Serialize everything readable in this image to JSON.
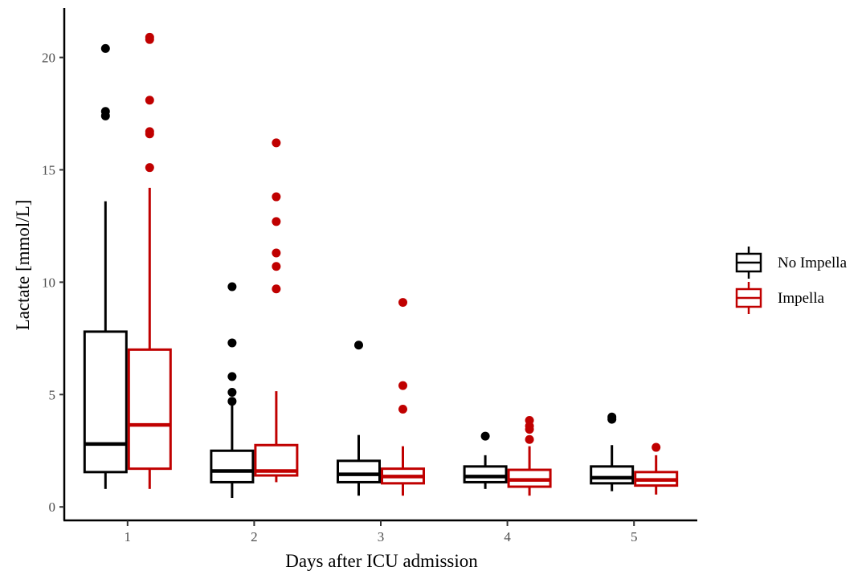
{
  "chart_data": {
    "type": "boxplot",
    "xlabel": "Days after ICU admission",
    "ylabel": "Lactate [mmol/L]",
    "categories": [
      "1",
      "2",
      "3",
      "4",
      "5"
    ],
    "ylim": [
      -0.6,
      22.2
    ],
    "yticks": [
      0,
      5,
      10,
      15,
      20
    ],
    "grid": false,
    "legend_position": "right",
    "series": [
      {
        "name": "No Impella",
        "color": "#000000",
        "boxes": [
          {
            "min": 0.8,
            "q1": 1.55,
            "median": 2.8,
            "q3": 7.8,
            "max": 13.6,
            "outliers": [
              17.4,
              17.6,
              20.4
            ]
          },
          {
            "min": 0.4,
            "q1": 1.1,
            "median": 1.6,
            "q3": 2.5,
            "max": 4.6,
            "outliers": [
              4.7,
              5.1,
              5.8,
              7.3,
              9.8
            ]
          },
          {
            "min": 0.5,
            "q1": 1.1,
            "median": 1.45,
            "q3": 2.05,
            "max": 3.2,
            "outliers": [
              7.2
            ]
          },
          {
            "min": 0.8,
            "q1": 1.1,
            "median": 1.35,
            "q3": 1.8,
            "max": 2.3,
            "outliers": [
              3.15
            ]
          },
          {
            "min": 0.7,
            "q1": 1.05,
            "median": 1.3,
            "q3": 1.8,
            "max": 2.75,
            "outliers": [
              3.9,
              4.0
            ]
          }
        ]
      },
      {
        "name": "Impella",
        "color": "#c00000",
        "boxes": [
          {
            "min": 0.8,
            "q1": 1.7,
            "median": 3.65,
            "q3": 7.0,
            "max": 14.2,
            "outliers": [
              15.1,
              16.6,
              16.7,
              18.1,
              20.8,
              20.9
            ]
          },
          {
            "min": 1.1,
            "q1": 1.4,
            "median": 1.6,
            "q3": 2.75,
            "max": 5.15,
            "outliers": [
              9.7,
              10.7,
              11.3,
              12.7,
              13.8,
              16.2
            ]
          },
          {
            "min": 0.5,
            "q1": 1.05,
            "median": 1.35,
            "q3": 1.7,
            "max": 2.7,
            "outliers": [
              4.35,
              5.4,
              9.1
            ]
          },
          {
            "min": 0.5,
            "q1": 0.9,
            "median": 1.2,
            "q3": 1.65,
            "max": 2.7,
            "outliers": [
              3.0,
              3.45,
              3.6,
              3.85
            ]
          },
          {
            "min": 0.55,
            "q1": 0.95,
            "median": 1.2,
            "q3": 1.55,
            "max": 2.3,
            "outliers": [
              2.65
            ]
          }
        ]
      }
    ]
  }
}
